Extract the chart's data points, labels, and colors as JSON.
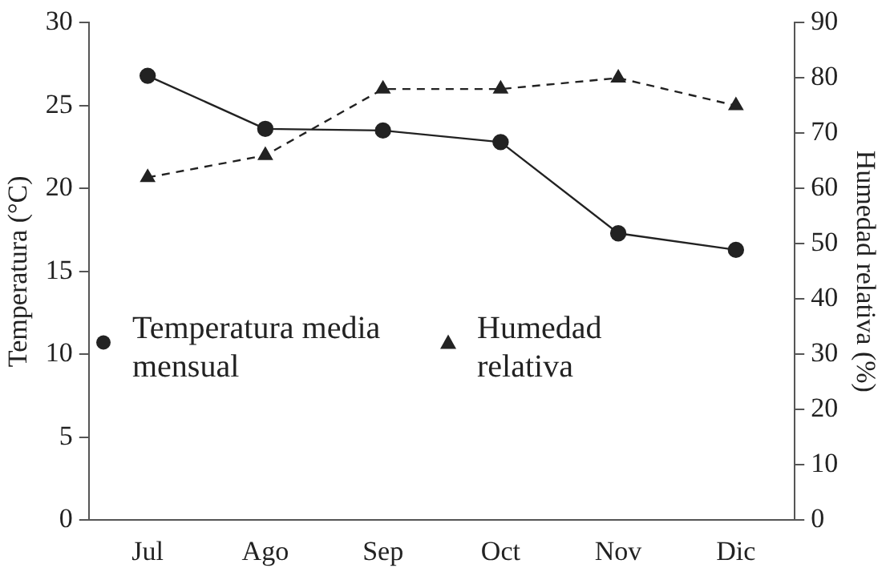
{
  "chart_data": {
    "type": "line",
    "xlabel": null,
    "ylabel": "Temperatura (°C)",
    "y2label": "Humedad relativa (%)",
    "categories": [
      "Jul",
      "Ago",
      "Sep",
      "Oct",
      "Nov",
      "Dic"
    ],
    "series": [
      {
        "name": "Temperatura media mensual",
        "color": "#222222",
        "values": [
          26.8,
          23.6,
          23.5,
          22.8,
          17.3,
          16.3
        ],
        "marker": "circle",
        "line_style": "solid"
      },
      {
        "name": "Humedad relativa",
        "color": "#222222",
        "values": [
          62,
          66,
          78,
          78,
          80,
          75
        ],
        "axis": "y2",
        "marker": "triangle",
        "line_style": "dashed"
      }
    ],
    "ylim": [
      0,
      30
    ],
    "yticks": [
      0,
      5,
      10,
      15,
      20,
      25,
      30
    ],
    "y2lim": [
      0,
      90
    ],
    "y2ticks": [
      0,
      10,
      20,
      30,
      40,
      50,
      60,
      70,
      80,
      90
    ],
    "grid": false,
    "legend": "center"
  }
}
